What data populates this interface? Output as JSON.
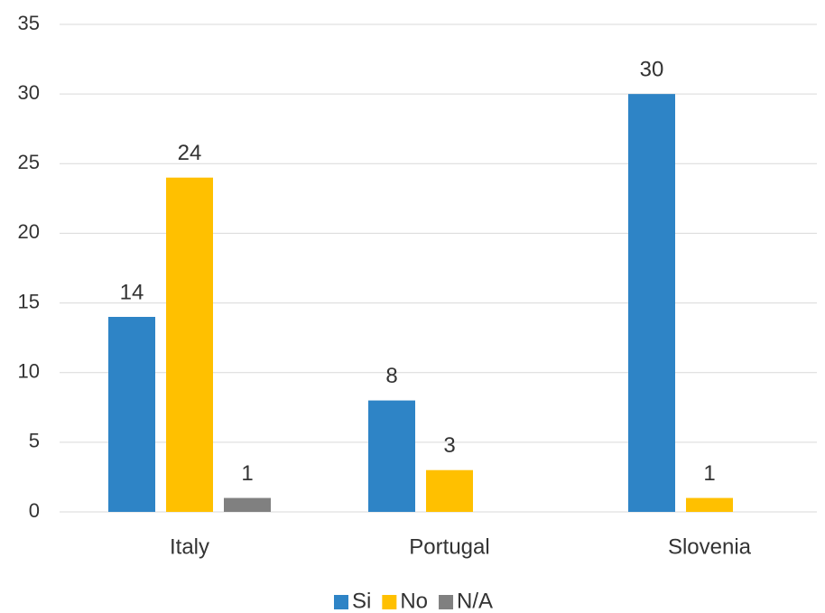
{
  "chart_data": {
    "type": "bar",
    "categories": [
      "Italy",
      "Portugal",
      "Slovenia"
    ],
    "series": [
      {
        "name": "Si",
        "color": "#2e84c6",
        "values": [
          14,
          8,
          30
        ]
      },
      {
        "name": "No",
        "color": "#ffc000",
        "values": [
          24,
          3,
          1
        ]
      },
      {
        "name": "N/A",
        "color": "#808080",
        "values": [
          1,
          null,
          null
        ]
      }
    ],
    "ylim": [
      0,
      35
    ],
    "yticks": [
      0,
      5,
      10,
      15,
      20,
      25,
      30,
      35
    ],
    "grid": true,
    "legend": "bottom"
  }
}
